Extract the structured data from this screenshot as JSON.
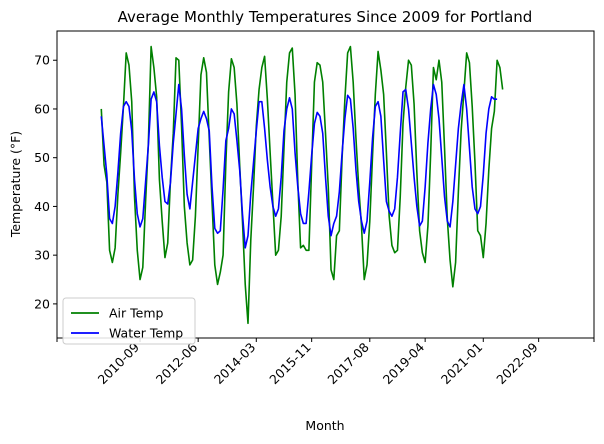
{
  "chart_data": {
    "type": "line",
    "title": "Average Monthly Temperatures Since 2009 for Portland",
    "xlabel": "Month",
    "ylabel": "Temperature (°F)",
    "ylim": [
      13,
      76
    ],
    "yticks": [
      20,
      30,
      40,
      50,
      60,
      70
    ],
    "xlim": [
      "2008-03",
      "2024-05"
    ],
    "xticks": [
      "2010-09",
      "2012-06",
      "2014-03",
      "2015-11",
      "2017-08",
      "2019-04",
      "2021-01",
      "2022-09"
    ],
    "grid": false,
    "legend_position": "lower-left",
    "series": [
      {
        "name": "Air Temp",
        "color": "#008000",
        "points": [
          [
            "2009-07",
            60
          ],
          [
            "2009-08",
            48.5
          ],
          [
            "2009-09",
            45
          ],
          [
            "2009-10",
            31
          ],
          [
            "2009-11",
            28.5
          ],
          [
            "2009-12",
            31.5
          ],
          [
            "2010-01",
            42.5
          ],
          [
            "2010-02",
            51
          ],
          [
            "2010-03",
            60.5
          ],
          [
            "2010-04",
            71.5
          ],
          [
            "2010-05",
            69
          ],
          [
            "2010-06",
            61.5
          ],
          [
            "2010-07",
            42
          ],
          [
            "2010-08",
            31
          ],
          [
            "2010-09",
            25
          ],
          [
            "2010-10",
            27.5
          ],
          [
            "2010-11",
            41
          ],
          [
            "2010-12",
            53
          ],
          [
            "2011-01",
            72.8
          ],
          [
            "2011-02",
            68.5
          ],
          [
            "2011-03",
            62.5
          ],
          [
            "2011-04",
            45.5
          ],
          [
            "2011-05",
            37
          ],
          [
            "2011-06",
            29.5
          ],
          [
            "2011-07",
            32.5
          ],
          [
            "2011-08",
            45.5
          ],
          [
            "2011-09",
            55
          ],
          [
            "2011-10",
            70.5
          ],
          [
            "2011-11",
            70
          ],
          [
            "2011-12",
            56.5
          ],
          [
            "2012-01",
            40
          ],
          [
            "2012-02",
            32.5
          ],
          [
            "2012-03",
            28
          ],
          [
            "2012-04",
            29
          ],
          [
            "2012-05",
            38
          ],
          [
            "2012-06",
            52.5
          ],
          [
            "2012-07",
            67
          ],
          [
            "2012-08",
            70.5
          ],
          [
            "2012-09",
            67.5
          ],
          [
            "2012-10",
            54
          ],
          [
            "2012-11",
            41
          ],
          [
            "2012-12",
            28
          ],
          [
            "2013-01",
            24
          ],
          [
            "2013-02",
            26.5
          ],
          [
            "2013-03",
            30
          ],
          [
            "2013-04",
            49
          ],
          [
            "2013-05",
            63.5
          ],
          [
            "2013-06",
            70.3
          ],
          [
            "2013-07",
            68.5
          ],
          [
            "2013-08",
            61
          ],
          [
            "2013-09",
            48.5
          ],
          [
            "2013-10",
            37
          ],
          [
            "2013-11",
            24
          ],
          [
            "2013-12",
            16
          ],
          [
            "2014-01",
            33
          ],
          [
            "2014-02",
            44
          ],
          [
            "2014-03",
            56.5
          ],
          [
            "2014-04",
            64
          ],
          [
            "2014-05",
            68.5
          ],
          [
            "2014-06",
            70.8
          ],
          [
            "2014-07",
            62
          ],
          [
            "2014-08",
            51
          ],
          [
            "2014-09",
            40.5
          ],
          [
            "2014-10",
            30
          ],
          [
            "2014-11",
            31
          ],
          [
            "2014-12",
            38
          ],
          [
            "2015-01",
            52
          ],
          [
            "2015-02",
            65.5
          ],
          [
            "2015-03",
            71.5
          ],
          [
            "2015-04",
            72.5
          ],
          [
            "2015-05",
            63
          ],
          [
            "2015-06",
            45
          ],
          [
            "2015-07",
            31.5
          ],
          [
            "2015-08",
            32
          ],
          [
            "2015-09",
            31
          ],
          [
            "2015-10",
            31
          ],
          [
            "2015-11",
            48.5
          ],
          [
            "2015-12",
            65.5
          ],
          [
            "2016-01",
            69.5
          ],
          [
            "2016-02",
            69
          ],
          [
            "2016-03",
            65.5
          ],
          [
            "2016-04",
            55
          ],
          [
            "2016-05",
            44
          ],
          [
            "2016-06",
            27
          ],
          [
            "2016-07",
            25
          ],
          [
            "2016-08",
            34
          ],
          [
            "2016-09",
            35
          ],
          [
            "2016-10",
            50
          ],
          [
            "2016-11",
            62
          ],
          [
            "2016-12",
            71.5
          ],
          [
            "2017-01",
            72.8
          ],
          [
            "2017-02",
            65.5
          ],
          [
            "2017-03",
            54
          ],
          [
            "2017-04",
            44
          ],
          [
            "2017-05",
            36
          ],
          [
            "2017-06",
            25
          ],
          [
            "2017-07",
            28
          ],
          [
            "2017-08",
            37
          ],
          [
            "2017-09",
            50.5
          ],
          [
            "2017-10",
            63
          ],
          [
            "2017-11",
            71.8
          ],
          [
            "2017-12",
            68
          ],
          [
            "2018-01",
            63
          ],
          [
            "2018-02",
            51
          ],
          [
            "2018-03",
            38
          ],
          [
            "2018-04",
            32
          ],
          [
            "2018-05",
            30.5
          ],
          [
            "2018-06",
            31
          ],
          [
            "2018-07",
            42
          ],
          [
            "2018-08",
            57
          ],
          [
            "2018-09",
            64.5
          ],
          [
            "2018-10",
            70
          ],
          [
            "2018-11",
            69
          ],
          [
            "2018-12",
            61
          ],
          [
            "2019-01",
            47
          ],
          [
            "2019-02",
            35
          ],
          [
            "2019-03",
            30.5
          ],
          [
            "2019-04",
            28.5
          ],
          [
            "2019-05",
            36
          ],
          [
            "2019-06",
            51
          ],
          [
            "2019-07",
            68.5
          ],
          [
            "2019-08",
            66
          ],
          [
            "2019-09",
            70
          ],
          [
            "2019-10",
            65.5
          ],
          [
            "2019-11",
            52
          ],
          [
            "2019-12",
            37.5
          ],
          [
            "2020-01",
            29
          ],
          [
            "2020-02",
            23.5
          ],
          [
            "2020-03",
            28.5
          ],
          [
            "2020-04",
            43
          ],
          [
            "2020-05",
            55.5
          ],
          [
            "2020-06",
            63.5
          ],
          [
            "2020-07",
            71.5
          ],
          [
            "2020-08",
            69.5
          ],
          [
            "2020-09",
            60.5
          ],
          [
            "2020-10",
            49
          ],
          [
            "2020-11",
            35
          ],
          [
            "2020-12",
            34
          ],
          [
            "2021-01",
            29.5
          ],
          [
            "2021-02",
            36.5
          ],
          [
            "2021-03",
            47.5
          ],
          [
            "2021-04",
            56
          ],
          [
            "2021-05",
            59.5
          ],
          [
            "2021-06",
            70
          ],
          [
            "2021-07",
            68.5
          ],
          [
            "2021-08",
            64
          ]
        ]
      },
      {
        "name": "Water Temp",
        "color": "#0000ff",
        "points": [
          [
            "2009-07",
            58.5
          ],
          [
            "2009-08",
            52.5
          ],
          [
            "2009-09",
            46.5
          ],
          [
            "2009-10",
            37.5
          ],
          [
            "2009-11",
            36.5
          ],
          [
            "2009-12",
            40
          ],
          [
            "2010-01",
            47
          ],
          [
            "2010-02",
            55
          ],
          [
            "2010-03",
            60.5
          ],
          [
            "2010-04",
            61.5
          ],
          [
            "2010-05",
            60.5
          ],
          [
            "2010-06",
            55.5
          ],
          [
            "2010-07",
            45.5
          ],
          [
            "2010-08",
            38.5
          ],
          [
            "2010-09",
            35.8
          ],
          [
            "2010-10",
            37.5
          ],
          [
            "2010-11",
            45
          ],
          [
            "2010-12",
            52.5
          ],
          [
            "2011-01",
            62
          ],
          [
            "2011-02",
            63.5
          ],
          [
            "2011-03",
            61.5
          ],
          [
            "2011-04",
            52.5
          ],
          [
            "2011-05",
            46
          ],
          [
            "2011-06",
            41
          ],
          [
            "2011-07",
            40.5
          ],
          [
            "2011-08",
            45
          ],
          [
            "2011-09",
            53
          ],
          [
            "2011-10",
            59
          ],
          [
            "2011-11",
            65
          ],
          [
            "2011-12",
            60
          ],
          [
            "2012-01",
            50.5
          ],
          [
            "2012-02",
            42.5
          ],
          [
            "2012-03",
            39.5
          ],
          [
            "2012-04",
            45
          ],
          [
            "2012-05",
            50.5
          ],
          [
            "2012-06",
            56
          ],
          [
            "2012-07",
            58
          ],
          [
            "2012-08",
            59.5
          ],
          [
            "2012-09",
            58
          ],
          [
            "2012-10",
            55.5
          ],
          [
            "2012-11",
            44
          ],
          [
            "2012-12",
            35.5
          ],
          [
            "2013-01",
            34.5
          ],
          [
            "2013-02",
            35
          ],
          [
            "2013-03",
            43.5
          ],
          [
            "2013-04",
            53.5
          ],
          [
            "2013-05",
            56
          ],
          [
            "2013-06",
            60
          ],
          [
            "2013-07",
            59
          ],
          [
            "2013-08",
            53.5
          ],
          [
            "2013-09",
            47.5
          ],
          [
            "2013-10",
            38.5
          ],
          [
            "2013-11",
            31.5
          ],
          [
            "2013-12",
            34
          ],
          [
            "2014-01",
            42.5
          ],
          [
            "2014-02",
            49
          ],
          [
            "2014-03",
            55.5
          ],
          [
            "2014-04",
            61.5
          ],
          [
            "2014-05",
            61.5
          ],
          [
            "2014-06",
            56
          ],
          [
            "2014-07",
            49.5
          ],
          [
            "2014-08",
            44
          ],
          [
            "2014-09",
            40
          ],
          [
            "2014-10",
            38
          ],
          [
            "2014-11",
            39.5
          ],
          [
            "2014-12",
            46
          ],
          [
            "2015-01",
            55.5
          ],
          [
            "2015-02",
            60
          ],
          [
            "2015-03",
            62.3
          ],
          [
            "2015-04",
            60
          ],
          [
            "2015-05",
            51
          ],
          [
            "2015-06",
            44
          ],
          [
            "2015-07",
            38.5
          ],
          [
            "2015-08",
            36.5
          ],
          [
            "2015-09",
            36.5
          ],
          [
            "2015-10",
            43
          ],
          [
            "2015-11",
            50.5
          ],
          [
            "2015-12",
            57
          ],
          [
            "2016-01",
            59.3
          ],
          [
            "2016-02",
            58.5
          ],
          [
            "2016-03",
            55
          ],
          [
            "2016-04",
            46
          ],
          [
            "2016-05",
            38
          ],
          [
            "2016-06",
            34
          ],
          [
            "2016-07",
            36.5
          ],
          [
            "2016-08",
            38
          ],
          [
            "2016-09",
            43
          ],
          [
            "2016-10",
            51
          ],
          [
            "2016-11",
            58
          ],
          [
            "2016-12",
            62.8
          ],
          [
            "2017-01",
            62
          ],
          [
            "2017-02",
            56
          ],
          [
            "2017-03",
            47.5
          ],
          [
            "2017-04",
            41
          ],
          [
            "2017-05",
            37
          ],
          [
            "2017-06",
            34.5
          ],
          [
            "2017-07",
            37
          ],
          [
            "2017-08",
            45
          ],
          [
            "2017-09",
            54
          ],
          [
            "2017-10",
            60.5
          ],
          [
            "2017-11",
            61.5
          ],
          [
            "2017-12",
            58.5
          ],
          [
            "2018-01",
            49.5
          ],
          [
            "2018-02",
            41
          ],
          [
            "2018-03",
            39
          ],
          [
            "2018-04",
            38
          ],
          [
            "2018-05",
            39.5
          ],
          [
            "2018-06",
            46
          ],
          [
            "2018-07",
            55
          ],
          [
            "2018-08",
            63.5
          ],
          [
            "2018-09",
            64
          ],
          [
            "2018-10",
            60
          ],
          [
            "2018-11",
            53
          ],
          [
            "2018-12",
            46
          ],
          [
            "2019-01",
            40
          ],
          [
            "2019-02",
            36
          ],
          [
            "2019-03",
            37
          ],
          [
            "2019-04",
            44
          ],
          [
            "2019-05",
            53
          ],
          [
            "2019-06",
            60
          ],
          [
            "2019-07",
            65
          ],
          [
            "2019-08",
            63
          ],
          [
            "2019-09",
            58
          ],
          [
            "2019-10",
            50
          ],
          [
            "2019-11",
            42
          ],
          [
            "2019-12",
            37
          ],
          [
            "2020-01",
            35.8
          ],
          [
            "2020-02",
            41
          ],
          [
            "2020-03",
            48.5
          ],
          [
            "2020-04",
            56
          ],
          [
            "2020-05",
            61
          ],
          [
            "2020-06",
            65
          ],
          [
            "2020-07",
            60
          ],
          [
            "2020-08",
            52
          ],
          [
            "2020-09",
            44
          ],
          [
            "2020-10",
            39.5
          ],
          [
            "2020-11",
            38.5
          ],
          [
            "2020-12",
            40
          ],
          [
            "2021-01",
            46.5
          ],
          [
            "2021-02",
            55
          ],
          [
            "2021-03",
            60
          ],
          [
            "2021-04",
            62.5
          ],
          [
            "2021-05",
            62
          ],
          [
            "2021-06",
            62
          ]
        ]
      }
    ]
  }
}
